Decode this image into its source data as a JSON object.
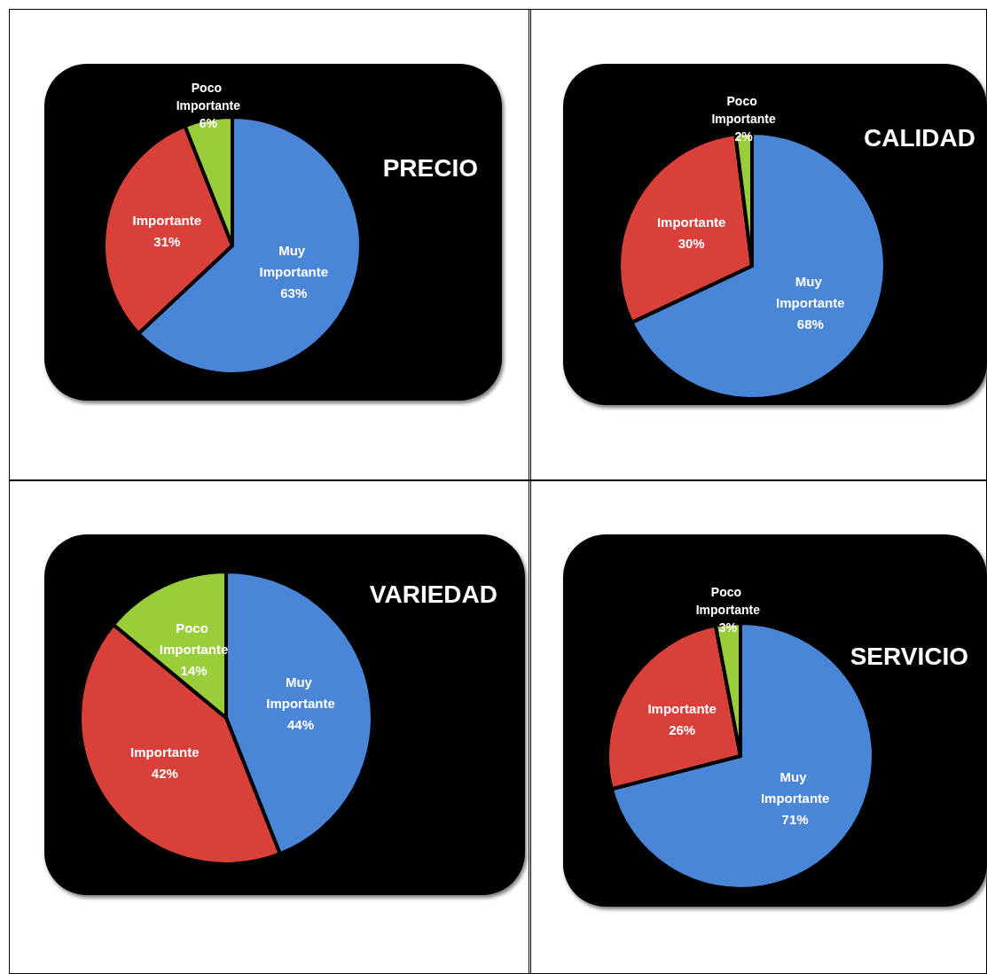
{
  "chart_data": [
    {
      "type": "pie",
      "title": "PRECIO",
      "categories": [
        "Muy Importante",
        "Importante",
        "Poco Importante"
      ],
      "values": [
        63,
        31,
        6
      ],
      "value_labels": [
        "63%",
        "31%",
        "6%"
      ],
      "colors": [
        "#4a86d8",
        "#d9403a",
        "#9acd3a"
      ],
      "legend": false
    },
    {
      "type": "pie",
      "title": "CALIDAD",
      "categories": [
        "Muy Importante",
        "Importante",
        "Poco Importante"
      ],
      "values": [
        68,
        30,
        2
      ],
      "value_labels": [
        "68%",
        "30%",
        "2%"
      ],
      "colors": [
        "#4a86d8",
        "#d9403a",
        "#9acd3a"
      ],
      "legend": false
    },
    {
      "type": "pie",
      "title": "VARIEDAD",
      "categories": [
        "Muy Importante",
        "Importante",
        "Poco Importante"
      ],
      "values": [
        44,
        42,
        14
      ],
      "value_labels": [
        "44%",
        "42%",
        "14%"
      ],
      "colors": [
        "#4a86d8",
        "#d9403a",
        "#9acd3a"
      ],
      "legend": false
    },
    {
      "type": "pie",
      "title": "SERVICIO",
      "categories": [
        "Muy Importante",
        "Importante",
        "Poco Importante"
      ],
      "values": [
        71,
        26,
        3
      ],
      "value_labels": [
        "71%",
        "26%",
        "3%"
      ],
      "colors": [
        "#4a86d8",
        "#d9403a",
        "#9acd3a"
      ],
      "legend": false
    }
  ]
}
